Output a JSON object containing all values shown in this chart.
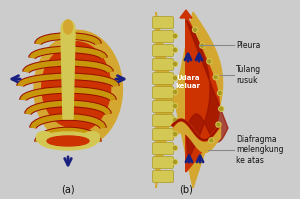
{
  "bg_color": "#cccccc",
  "fig_width": 3.0,
  "fig_height": 1.99,
  "dpi": 100,
  "label_a": "(a)",
  "label_b": "(b)",
  "text_udara": "Udara\nkeluar",
  "text_pleura": "Pleura",
  "text_tulang": "Tulang\nrusuk",
  "text_diafragma": "Diafragma\nmelengkung\nke atas",
  "rib_color": "#c8960a",
  "lung_color": "#cc3300",
  "spine_color": "#d4c855",
  "arrow_color": "#1a2080",
  "outer_bg": "#d4a830",
  "dark_red": "#991100",
  "mid_red": "#bb2200",
  "text_color": "#111111",
  "line_color": "#888888"
}
